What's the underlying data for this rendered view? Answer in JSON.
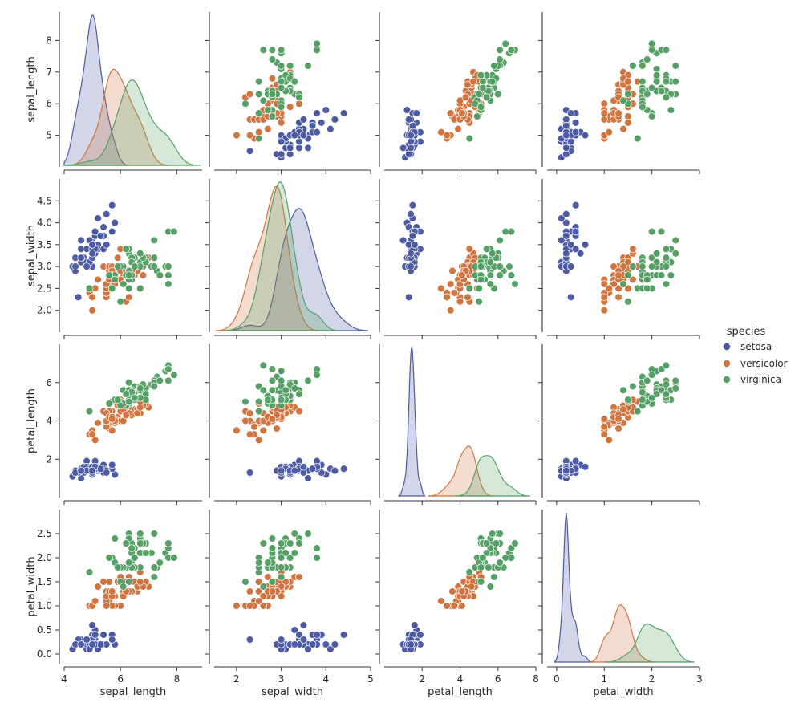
{
  "chart_data": {
    "type": "scatter",
    "title": "",
    "variables": [
      "sepal_length",
      "sepal_width",
      "petal_length",
      "petal_width"
    ],
    "axes": {
      "sepal_length": {
        "label": "sepal_length",
        "range": [
          4.0,
          8.9
        ],
        "ticks": [
          4,
          6,
          8
        ],
        "row_ticks": [
          5,
          6,
          7,
          8
        ]
      },
      "sepal_width": {
        "label": "sepal_width",
        "range": [
          1.5,
          5.0
        ],
        "ticks": [
          2,
          3,
          4,
          5
        ],
        "row_ticks": [
          2.0,
          2.5,
          3.0,
          3.5,
          4.0,
          4.5
        ]
      },
      "petal_length": {
        "label": "petal_length",
        "range": [
          0.0,
          8.0
        ],
        "ticks": [
          2,
          4,
          6,
          8
        ],
        "row_ticks": [
          2,
          4,
          6
        ]
      },
      "petal_width": {
        "label": "petal_width",
        "range": [
          -0.2,
          3.0
        ],
        "ticks": [
          0,
          1,
          2,
          3
        ],
        "row_ticks": [
          0.0,
          0.5,
          1.0,
          1.5,
          2.0,
          2.5
        ]
      }
    },
    "diagonal": "kde",
    "legend": {
      "title": "species",
      "placement": "right",
      "entries": [
        {
          "name": "setosa",
          "color": "#4c5ba3"
        },
        {
          "name": "versicolor",
          "color": "#d0753f"
        },
        {
          "name": "virginica",
          "color": "#55a064"
        }
      ]
    },
    "series": [
      {
        "name": "setosa",
        "color": "#4c5ba3",
        "points": [
          [
            5.1,
            3.5,
            1.4,
            0.2
          ],
          [
            4.9,
            3.0,
            1.4,
            0.2
          ],
          [
            4.7,
            3.2,
            1.3,
            0.2
          ],
          [
            4.6,
            3.1,
            1.5,
            0.2
          ],
          [
            5.0,
            3.6,
            1.4,
            0.2
          ],
          [
            5.4,
            3.9,
            1.7,
            0.4
          ],
          [
            4.6,
            3.4,
            1.4,
            0.3
          ],
          [
            5.0,
            3.4,
            1.5,
            0.2
          ],
          [
            4.4,
            2.9,
            1.4,
            0.2
          ],
          [
            4.9,
            3.1,
            1.5,
            0.1
          ],
          [
            5.4,
            3.7,
            1.5,
            0.2
          ],
          [
            4.8,
            3.4,
            1.6,
            0.2
          ],
          [
            4.8,
            3.0,
            1.4,
            0.1
          ],
          [
            4.3,
            3.0,
            1.1,
            0.1
          ],
          [
            5.8,
            4.0,
            1.2,
            0.2
          ],
          [
            5.7,
            4.4,
            1.5,
            0.4
          ],
          [
            5.4,
            3.9,
            1.3,
            0.4
          ],
          [
            5.1,
            3.5,
            1.4,
            0.3
          ],
          [
            5.7,
            3.8,
            1.7,
            0.3
          ],
          [
            5.1,
            3.8,
            1.5,
            0.3
          ],
          [
            5.4,
            3.4,
            1.7,
            0.2
          ],
          [
            5.1,
            3.7,
            1.5,
            0.4
          ],
          [
            4.6,
            3.6,
            1.0,
            0.2
          ],
          [
            5.1,
            3.3,
            1.7,
            0.5
          ],
          [
            4.8,
            3.4,
            1.9,
            0.2
          ],
          [
            5.0,
            3.0,
            1.6,
            0.2
          ],
          [
            5.0,
            3.4,
            1.6,
            0.4
          ],
          [
            5.2,
            3.5,
            1.5,
            0.2
          ],
          [
            5.2,
            3.4,
            1.4,
            0.2
          ],
          [
            4.7,
            3.2,
            1.6,
            0.2
          ],
          [
            4.8,
            3.1,
            1.6,
            0.2
          ],
          [
            5.4,
            3.4,
            1.5,
            0.4
          ],
          [
            5.2,
            4.1,
            1.5,
            0.1
          ],
          [
            5.5,
            4.2,
            1.4,
            0.2
          ],
          [
            4.9,
            3.1,
            1.5,
            0.2
          ],
          [
            5.0,
            3.2,
            1.2,
            0.2
          ],
          [
            5.5,
            3.5,
            1.3,
            0.2
          ],
          [
            4.9,
            3.6,
            1.4,
            0.1
          ],
          [
            4.4,
            3.0,
            1.3,
            0.2
          ],
          [
            5.1,
            3.4,
            1.5,
            0.2
          ],
          [
            5.0,
            3.5,
            1.3,
            0.3
          ],
          [
            4.5,
            2.3,
            1.3,
            0.3
          ],
          [
            4.4,
            3.2,
            1.3,
            0.2
          ],
          [
            5.0,
            3.5,
            1.6,
            0.6
          ],
          [
            5.1,
            3.8,
            1.9,
            0.4
          ],
          [
            4.8,
            3.0,
            1.4,
            0.3
          ],
          [
            5.1,
            3.8,
            1.6,
            0.2
          ],
          [
            4.6,
            3.2,
            1.4,
            0.2
          ],
          [
            5.3,
            3.7,
            1.5,
            0.2
          ],
          [
            5.0,
            3.3,
            1.4,
            0.2
          ]
        ]
      },
      {
        "name": "versicolor",
        "color": "#d0753f",
        "points": [
          [
            7.0,
            3.2,
            4.7,
            1.4
          ],
          [
            6.4,
            3.2,
            4.5,
            1.5
          ],
          [
            6.9,
            3.1,
            4.9,
            1.5
          ],
          [
            5.5,
            2.3,
            4.0,
            1.3
          ],
          [
            6.5,
            2.8,
            4.6,
            1.5
          ],
          [
            5.7,
            2.8,
            4.5,
            1.3
          ],
          [
            6.3,
            3.3,
            4.7,
            1.6
          ],
          [
            4.9,
            2.4,
            3.3,
            1.0
          ],
          [
            6.6,
            2.9,
            4.6,
            1.3
          ],
          [
            5.2,
            2.7,
            3.9,
            1.4
          ],
          [
            5.0,
            2.0,
            3.5,
            1.0
          ],
          [
            5.9,
            3.0,
            4.2,
            1.5
          ],
          [
            6.0,
            2.2,
            4.0,
            1.0
          ],
          [
            6.1,
            2.9,
            4.7,
            1.4
          ],
          [
            5.6,
            2.9,
            3.6,
            1.3
          ],
          [
            6.7,
            3.1,
            4.4,
            1.4
          ],
          [
            5.6,
            3.0,
            4.5,
            1.5
          ],
          [
            5.8,
            2.7,
            4.1,
            1.0
          ],
          [
            6.2,
            2.2,
            4.5,
            1.5
          ],
          [
            5.6,
            2.5,
            3.9,
            1.1
          ],
          [
            5.9,
            3.2,
            4.8,
            1.8
          ],
          [
            6.1,
            2.8,
            4.0,
            1.3
          ],
          [
            6.3,
            2.5,
            4.9,
            1.5
          ],
          [
            6.1,
            2.8,
            4.7,
            1.2
          ],
          [
            6.4,
            2.9,
            4.3,
            1.3
          ],
          [
            6.6,
            3.0,
            4.4,
            1.4
          ],
          [
            6.8,
            2.8,
            4.8,
            1.4
          ],
          [
            6.7,
            3.0,
            5.0,
            1.7
          ],
          [
            6.0,
            2.9,
            4.5,
            1.5
          ],
          [
            5.7,
            2.6,
            3.5,
            1.0
          ],
          [
            5.5,
            2.4,
            3.8,
            1.1
          ],
          [
            5.5,
            2.4,
            3.7,
            1.0
          ],
          [
            5.8,
            2.7,
            3.9,
            1.2
          ],
          [
            6.0,
            2.7,
            5.1,
            1.6
          ],
          [
            5.4,
            3.0,
            4.5,
            1.5
          ],
          [
            6.0,
            3.4,
            4.5,
            1.6
          ],
          [
            6.7,
            3.1,
            4.7,
            1.5
          ],
          [
            6.3,
            2.3,
            4.4,
            1.3
          ],
          [
            5.6,
            3.0,
            4.1,
            1.3
          ],
          [
            5.5,
            2.5,
            4.0,
            1.3
          ],
          [
            5.5,
            2.6,
            4.4,
            1.2
          ],
          [
            6.1,
            3.0,
            4.6,
            1.4
          ],
          [
            5.8,
            2.6,
            4.0,
            1.2
          ],
          [
            5.0,
            2.3,
            3.3,
            1.0
          ],
          [
            5.6,
            2.7,
            4.2,
            1.3
          ],
          [
            5.7,
            3.0,
            4.2,
            1.2
          ],
          [
            5.7,
            2.9,
            4.2,
            1.3
          ],
          [
            6.2,
            2.9,
            4.3,
            1.3
          ],
          [
            5.1,
            2.5,
            3.0,
            1.1
          ],
          [
            5.7,
            2.8,
            4.1,
            1.3
          ]
        ]
      },
      {
        "name": "virginica",
        "color": "#55a064",
        "points": [
          [
            6.3,
            3.3,
            6.0,
            2.5
          ],
          [
            5.8,
            2.7,
            5.1,
            1.9
          ],
          [
            7.1,
            3.0,
            5.9,
            2.1
          ],
          [
            6.3,
            2.9,
            5.6,
            1.8
          ],
          [
            6.5,
            3.0,
            5.8,
            2.2
          ],
          [
            7.6,
            3.0,
            6.6,
            2.1
          ],
          [
            4.9,
            2.5,
            4.5,
            1.7
          ],
          [
            7.3,
            2.9,
            6.3,
            1.8
          ],
          [
            6.7,
            2.5,
            5.8,
            1.8
          ],
          [
            7.2,
            3.6,
            6.1,
            2.5
          ],
          [
            6.5,
            3.2,
            5.1,
            2.0
          ],
          [
            6.4,
            2.7,
            5.3,
            1.9
          ],
          [
            6.8,
            3.0,
            5.5,
            2.1
          ],
          [
            5.7,
            2.5,
            5.0,
            2.0
          ],
          [
            5.8,
            2.8,
            5.1,
            2.4
          ],
          [
            6.4,
            3.2,
            5.3,
            2.3
          ],
          [
            6.5,
            3.0,
            5.5,
            1.8
          ],
          [
            7.7,
            3.8,
            6.7,
            2.2
          ],
          [
            7.7,
            2.6,
            6.9,
            2.3
          ],
          [
            6.0,
            2.2,
            5.0,
            1.5
          ],
          [
            6.9,
            3.2,
            5.7,
            2.3
          ],
          [
            5.6,
            2.8,
            4.9,
            2.0
          ],
          [
            7.7,
            2.8,
            6.7,
            2.0
          ],
          [
            6.3,
            2.7,
            4.9,
            1.8
          ],
          [
            6.7,
            3.3,
            5.7,
            2.1
          ],
          [
            7.2,
            3.2,
            6.0,
            1.8
          ],
          [
            6.2,
            2.8,
            4.8,
            1.8
          ],
          [
            6.1,
            3.0,
            4.9,
            1.8
          ],
          [
            6.4,
            2.8,
            5.6,
            2.1
          ],
          [
            7.2,
            3.0,
            5.8,
            1.6
          ],
          [
            7.4,
            2.8,
            6.1,
            1.9
          ],
          [
            7.9,
            3.8,
            6.4,
            2.0
          ],
          [
            6.4,
            2.8,
            5.6,
            2.2
          ],
          [
            6.3,
            2.8,
            5.1,
            1.5
          ],
          [
            6.1,
            2.6,
            5.6,
            1.4
          ],
          [
            7.7,
            3.0,
            6.1,
            2.3
          ],
          [
            6.3,
            3.4,
            5.6,
            2.4
          ],
          [
            6.4,
            3.1,
            5.5,
            1.8
          ],
          [
            6.0,
            3.0,
            4.8,
            1.8
          ],
          [
            6.9,
            3.1,
            5.4,
            2.1
          ],
          [
            6.7,
            3.1,
            5.6,
            2.4
          ],
          [
            6.9,
            3.1,
            5.1,
            2.3
          ],
          [
            5.8,
            2.7,
            5.1,
            1.9
          ],
          [
            6.8,
            3.2,
            5.9,
            2.3
          ],
          [
            6.7,
            3.3,
            5.7,
            2.5
          ],
          [
            6.7,
            3.0,
            5.2,
            2.3
          ],
          [
            6.3,
            2.5,
            5.0,
            1.9
          ],
          [
            6.5,
            3.0,
            5.2,
            2.0
          ],
          [
            6.2,
            3.4,
            5.4,
            2.3
          ],
          [
            5.9,
            3.0,
            5.1,
            1.8
          ]
        ]
      }
    ]
  }
}
